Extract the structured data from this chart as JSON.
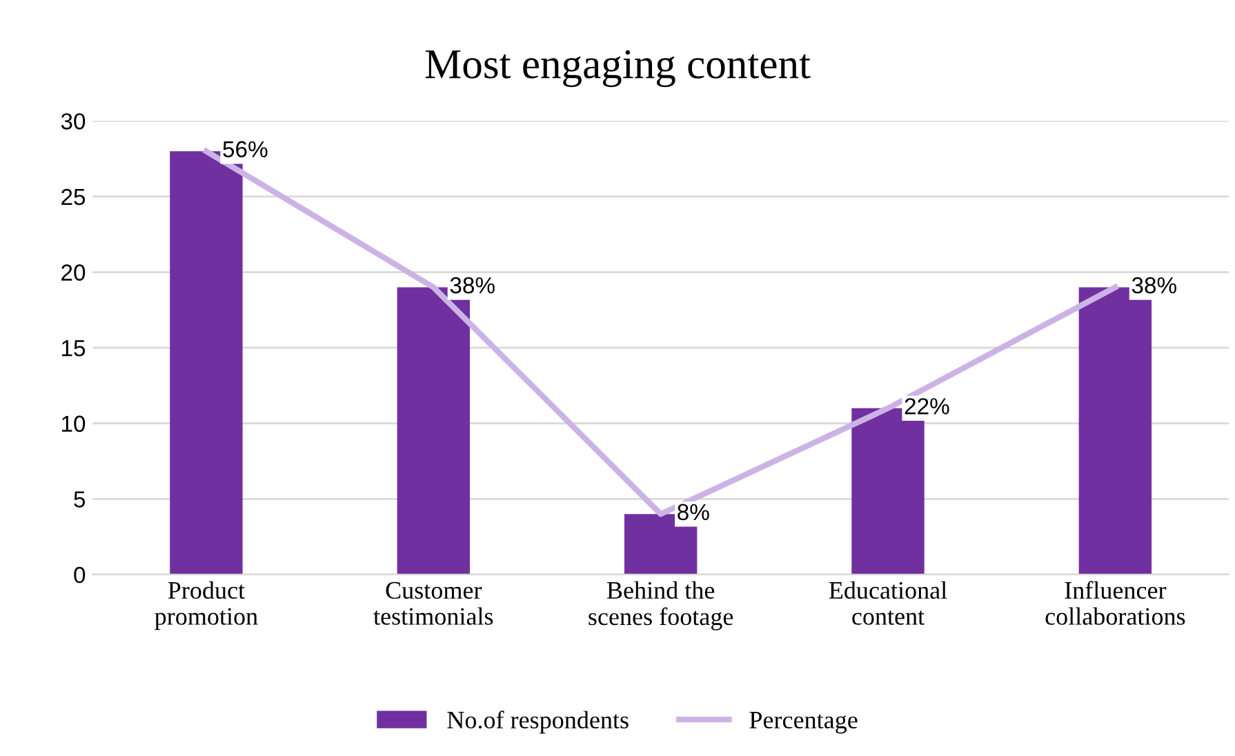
{
  "chart_data": {
    "type": "bar",
    "title": "Most engaging content",
    "categories": [
      "Product\npromotion",
      "Customer\ntestimonials",
      "Behind the\nscenes footage",
      "Educational\ncontent",
      "Influencer\ncollaborations"
    ],
    "series": [
      {
        "name": "No.of respondents",
        "color": "#7030a0",
        "values": [
          28,
          19,
          4,
          11,
          19
        ]
      },
      {
        "name": "Percentage",
        "type": "line",
        "color": "#ccb3e6",
        "axis": "y2",
        "values": [
          56,
          38,
          8,
          22,
          38
        ],
        "value_labels": [
          "56%",
          "38%",
          "8%",
          "22%",
          "38%"
        ]
      }
    ],
    "ylim": [
      0,
      30
    ],
    "y2lim": [
      0,
      60
    ],
    "yticks": [
      0,
      5,
      10,
      15,
      20,
      25,
      30
    ],
    "grid": "y",
    "legend": "bottom"
  }
}
